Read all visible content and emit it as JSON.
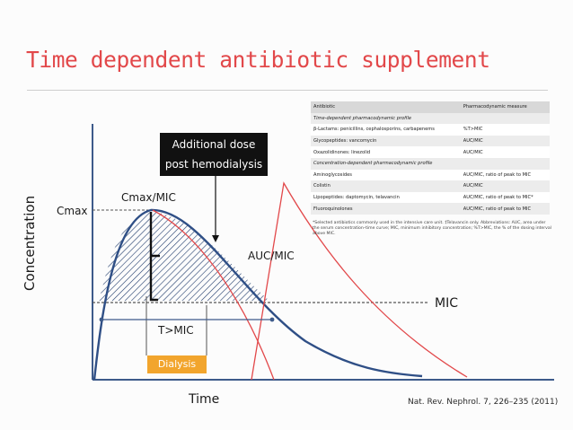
{
  "slide": {
    "title": "Time dependent antibiotic supplement",
    "dose_box": {
      "line1": "Additional dose",
      "line2": "post hemodialysis"
    },
    "labels": {
      "cmax": "Cmax",
      "cmax_mic": "Cmax/MIC",
      "auc_mic": "AUC/MIC",
      "mic": "MIC",
      "t_mic": "T>MIC",
      "dialysis": "Dialysis",
      "x_axis": "Time",
      "y_axis": "Concentration"
    },
    "citation": "Nat. Rev. Nephrol. 7, 226–235 (2011)"
  },
  "table": {
    "headers": [
      "Antibiotic",
      "Pharmacodynamic measure"
    ],
    "sections": [
      {
        "title": "Time-dependent pharmacodynamic profile",
        "rows": [
          [
            "β-Lactams: penicillins, cephalosporins, carbapenems",
            "%T>MIC"
          ],
          [
            "Glycopeptides: vancomycin",
            "AUC/MIC"
          ],
          [
            "Oxazolidinones: linezolid",
            "AUC/MIC"
          ]
        ]
      },
      {
        "title": "Concentration-dependent pharmacodynamic profile",
        "rows": [
          [
            "Aminoglycosides",
            "AUC/MIC, ratio of peak to MIC"
          ],
          [
            "Colistin",
            "AUC/MIC"
          ],
          [
            "Lipopeptides: daptomycin, telavancin",
            "AUC/MIC, ratio of peak to MIC*"
          ],
          [
            "Fluoroquinolones",
            "AUC/MIC, ratio of peak to MIC"
          ]
        ]
      }
    ],
    "footnote": "*Selected antibiotics commonly used in the intensive care unit. ‡Telavancin only. Abbreviations: AUC, area under the serum concentration–time curve; MIC, minimum inhibitory concentration; %T>MIC, the % of the dosing interval above MIC."
  },
  "colors": {
    "title": "#e2484a",
    "curve": "#2f4f86",
    "redline": "#e2484a",
    "dialysis": "#f2a52d",
    "axis": "#3d5a8a"
  }
}
